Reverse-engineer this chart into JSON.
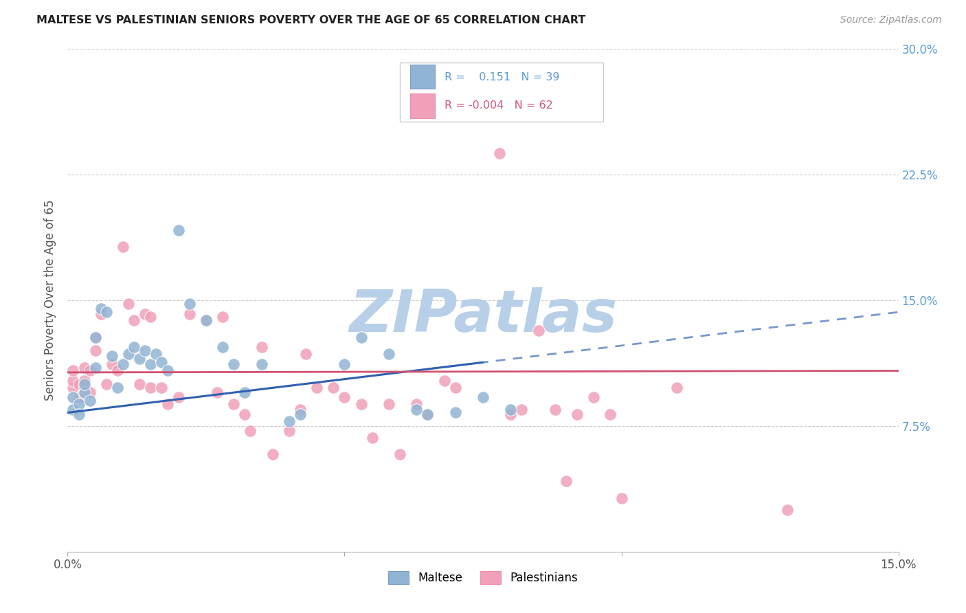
{
  "title": "MALTESE VS PALESTINIAN SENIORS POVERTY OVER THE AGE OF 65 CORRELATION CHART",
  "source": "Source: ZipAtlas.com",
  "ylabel": "Seniors Poverty Over the Age of 65",
  "xlim": [
    0.0,
    0.15
  ],
  "ylim": [
    0.0,
    0.3
  ],
  "xtick_positions": [
    0.0,
    0.05,
    0.1,
    0.15
  ],
  "xtick_labels": [
    "0.0%",
    "",
    "",
    "15.0%"
  ],
  "ytick_positions": [
    0.0,
    0.075,
    0.15,
    0.225,
    0.3
  ],
  "ytick_labels_right": [
    "",
    "7.5%",
    "15.0%",
    "22.5%",
    "30.0%"
  ],
  "maltese_color": "#92b4d4",
  "maltese_edge": "#7aa0c8",
  "palestinian_color": "#f0a0b8",
  "palestinian_edge": "#e890a8",
  "maltese_R": 0.151,
  "maltese_N": 39,
  "palestinian_R": -0.004,
  "palestinian_N": 62,
  "line_maltese_color": "#3060b0",
  "line_palestinian_color": "#d05070",
  "maltese_x": [
    0.001,
    0.001,
    0.002,
    0.002,
    0.003,
    0.003,
    0.004,
    0.005,
    0.005,
    0.006,
    0.007,
    0.008,
    0.009,
    0.01,
    0.011,
    0.012,
    0.013,
    0.014,
    0.015,
    0.016,
    0.017,
    0.018,
    0.02,
    0.022,
    0.025,
    0.028,
    0.03,
    0.032,
    0.035,
    0.04,
    0.042,
    0.05,
    0.053,
    0.058,
    0.063,
    0.065,
    0.07,
    0.075,
    0.08
  ],
  "maltese_y": [
    0.085,
    0.092,
    0.088,
    0.082,
    0.095,
    0.1,
    0.09,
    0.128,
    0.11,
    0.145,
    0.143,
    0.117,
    0.098,
    0.112,
    0.118,
    0.122,
    0.115,
    0.12,
    0.112,
    0.118,
    0.113,
    0.108,
    0.192,
    0.148,
    0.138,
    0.122,
    0.112,
    0.095,
    0.112,
    0.078,
    0.082,
    0.112,
    0.128,
    0.118,
    0.085,
    0.082,
    0.083,
    0.092,
    0.085
  ],
  "palestinian_x": [
    0.001,
    0.001,
    0.001,
    0.002,
    0.002,
    0.003,
    0.003,
    0.003,
    0.004,
    0.004,
    0.005,
    0.005,
    0.006,
    0.007,
    0.008,
    0.009,
    0.01,
    0.011,
    0.012,
    0.013,
    0.014,
    0.015,
    0.015,
    0.017,
    0.018,
    0.02,
    0.022,
    0.025,
    0.027,
    0.028,
    0.03,
    0.032,
    0.033,
    0.035,
    0.037,
    0.04,
    0.042,
    0.043,
    0.045,
    0.048,
    0.05,
    0.053,
    0.055,
    0.058,
    0.06,
    0.063,
    0.065,
    0.068,
    0.07,
    0.075,
    0.078,
    0.08,
    0.082,
    0.085,
    0.088,
    0.09,
    0.092,
    0.095,
    0.098,
    0.1,
    0.11,
    0.13
  ],
  "palestinian_y": [
    0.098,
    0.102,
    0.108,
    0.092,
    0.1,
    0.098,
    0.102,
    0.11,
    0.108,
    0.095,
    0.12,
    0.128,
    0.142,
    0.1,
    0.112,
    0.108,
    0.182,
    0.148,
    0.138,
    0.1,
    0.142,
    0.14,
    0.098,
    0.098,
    0.088,
    0.092,
    0.142,
    0.138,
    0.095,
    0.14,
    0.088,
    0.082,
    0.072,
    0.122,
    0.058,
    0.072,
    0.085,
    0.118,
    0.098,
    0.098,
    0.092,
    0.088,
    0.068,
    0.088,
    0.058,
    0.088,
    0.082,
    0.102,
    0.098,
    0.27,
    0.238,
    0.082,
    0.085,
    0.132,
    0.085,
    0.042,
    0.082,
    0.092,
    0.082,
    0.032,
    0.098,
    0.025
  ],
  "background_color": "#ffffff",
  "grid_color": "#cccccc",
  "title_color": "#222222",
  "tick_color_right": "#5B9BD5",
  "watermark_text": "ZIPatlas",
  "watermark_color": "#b8cfe8",
  "dashed_line_start": 0.04
}
